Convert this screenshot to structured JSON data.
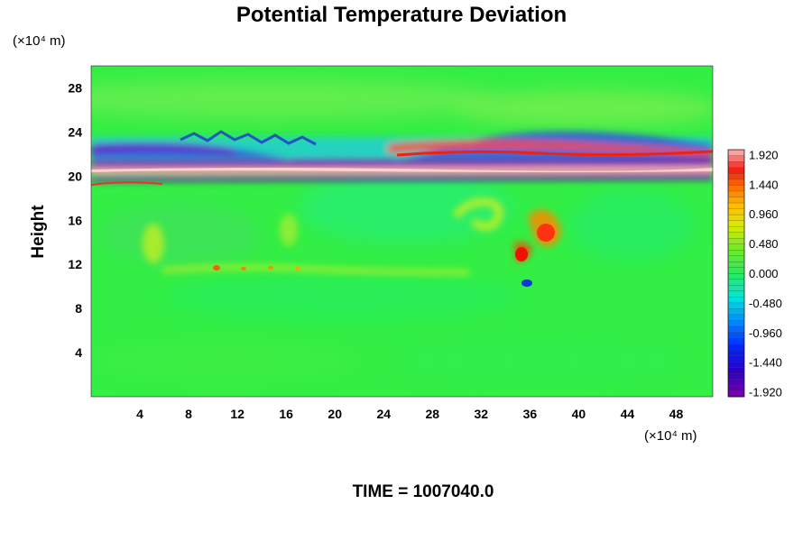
{
  "chart_data": {
    "type": "heatmap",
    "title": "Potential Temperature Deviation",
    "ylabel": "Height",
    "x_unit": "(×10⁴ m)",
    "y_unit": "(×10⁴ m)",
    "xlim": [
      0,
      51
    ],
    "ylim": [
      0,
      30
    ],
    "x_ticks": [
      "4",
      "8",
      "12",
      "16",
      "20",
      "24",
      "28",
      "32",
      "36",
      "40",
      "44",
      "48"
    ],
    "y_ticks": [
      "4",
      "8",
      "12",
      "16",
      "20",
      "24",
      "28"
    ],
    "colorbar": {
      "range": [
        -2.0,
        2.0
      ],
      "tick_labels": [
        "1.920",
        "1.440",
        "0.960",
        "0.480",
        "0.000",
        "-0.480",
        "-0.960",
        "-1.440",
        "-1.920"
      ]
    },
    "footer": "TIME = 1007040.0"
  },
  "colors": {
    "background_field": "#33ee44",
    "positive_max": "#ff9aa0",
    "negative_min": "#7000a8"
  }
}
